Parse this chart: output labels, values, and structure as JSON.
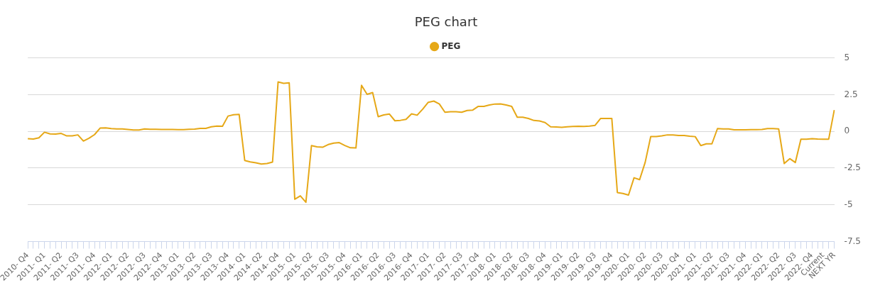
{
  "chart_data": {
    "type": "line",
    "title": "PEG chart",
    "categories": [
      "2010- Q4",
      null,
      null,
      "2011- Q1",
      null,
      null,
      "2011- Q2",
      null,
      null,
      "2011- Q3",
      null,
      null,
      "2011- Q4",
      null,
      null,
      "2012- Q1",
      null,
      null,
      "2012- Q2",
      null,
      null,
      "2012- Q3",
      null,
      null,
      "2012- Q4",
      null,
      null,
      "2013- Q1",
      null,
      null,
      "2013- Q2",
      null,
      null,
      "2013- Q3",
      null,
      null,
      "2013- Q4",
      null,
      null,
      "2014- Q1",
      null,
      null,
      "2014- Q2",
      null,
      null,
      "2014- Q4",
      null,
      null,
      "2015- Q1",
      null,
      null,
      "2015- Q2",
      null,
      null,
      "2015- Q3",
      null,
      null,
      "2015- Q4",
      null,
      null,
      "2016- Q1",
      null,
      null,
      "2016- Q2",
      null,
      null,
      "2016- Q3",
      null,
      null,
      "2016- Q4",
      null,
      null,
      "2017- Q1",
      null,
      null,
      "2017- Q2",
      null,
      null,
      "2017- Q3",
      null,
      null,
      "2017- Q4",
      null,
      null,
      "2018- Q1",
      null,
      null,
      "2018- Q2",
      null,
      null,
      "2018- Q3",
      null,
      null,
      "2018- Q4",
      null,
      null,
      "2019- Q1",
      null,
      null,
      "2019- Q2",
      null,
      null,
      "2019- Q3",
      null,
      null,
      "2019- Q4",
      null,
      null,
      "2020- Q1",
      null,
      null,
      "2020- Q2",
      null,
      null,
      "2020- Q3",
      null,
      null,
      "2020- Q4",
      null,
      null,
      "2021- Q1",
      null,
      null,
      "2021- Q2",
      null,
      null,
      "2021- Q3",
      null,
      null,
      "2021- Q4",
      null,
      null,
      "2022- Q1",
      null,
      null,
      "2022- Q2",
      null,
      null,
      "2022- Q3",
      null,
      null,
      "2022- Q4",
      null,
      "Current",
      null,
      "NEXT YR"
    ],
    "series": [
      {
        "name": "PEG",
        "color": "#e6a817",
        "values": [
          -0.5,
          -0.52,
          -0.44,
          -0.06,
          -0.17,
          -0.19,
          -0.14,
          -0.31,
          -0.31,
          -0.24,
          -0.66,
          -0.47,
          -0.22,
          0.22,
          0.24,
          0.19,
          0.17,
          0.17,
          0.13,
          0.09,
          0.09,
          0.16,
          0.14,
          0.14,
          0.13,
          0.13,
          0.13,
          0.12,
          0.12,
          0.14,
          0.15,
          0.2,
          0.2,
          0.31,
          0.36,
          0.35,
          1.04,
          1.13,
          1.15,
          -1.98,
          -2.08,
          -2.14,
          -2.22,
          -2.19,
          -2.09,
          3.36,
          3.27,
          3.3,
          -4.62,
          -4.39,
          -4.83,
          -0.97,
          -1.05,
          -1.08,
          -0.9,
          -0.8,
          -0.77,
          -0.96,
          -1.12,
          -1.13,
          3.13,
          2.52,
          2.64,
          1.0,
          1.12,
          1.18,
          0.72,
          0.75,
          0.82,
          1.19,
          1.1,
          1.51,
          1.98,
          2.06,
          1.86,
          1.3,
          1.34,
          1.34,
          1.3,
          1.42,
          1.45,
          1.7,
          1.7,
          1.79,
          1.86,
          1.87,
          1.79,
          1.7,
          0.96,
          0.96,
          0.88,
          0.74,
          0.71,
          0.6,
          0.31,
          0.3,
          0.27,
          0.31,
          0.33,
          0.35,
          0.33,
          0.36,
          0.41,
          0.88,
          0.88,
          0.88,
          -4.17,
          -4.23,
          -4.34,
          -3.16,
          -3.29,
          -2.11,
          -0.35,
          -0.35,
          -0.31,
          -0.24,
          -0.24,
          -0.28,
          -0.28,
          -0.33,
          -0.36,
          -0.97,
          -0.85,
          -0.85,
          0.19,
          0.17,
          0.16,
          0.11,
          0.11,
          0.11,
          0.12,
          0.12,
          0.13,
          0.19,
          0.19,
          0.17,
          -2.19,
          -1.86,
          -2.12,
          -0.53,
          -0.53,
          -0.5,
          -0.52,
          -0.53,
          -0.53,
          1.45
        ]
      }
    ],
    "ylim": [
      -7.5,
      5
    ],
    "yticks": [
      -7.5,
      -5,
      -2.5,
      0,
      2.5,
      5
    ],
    "grid": "y",
    "legend": "top",
    "marker": "none",
    "line_style": "solid"
  }
}
